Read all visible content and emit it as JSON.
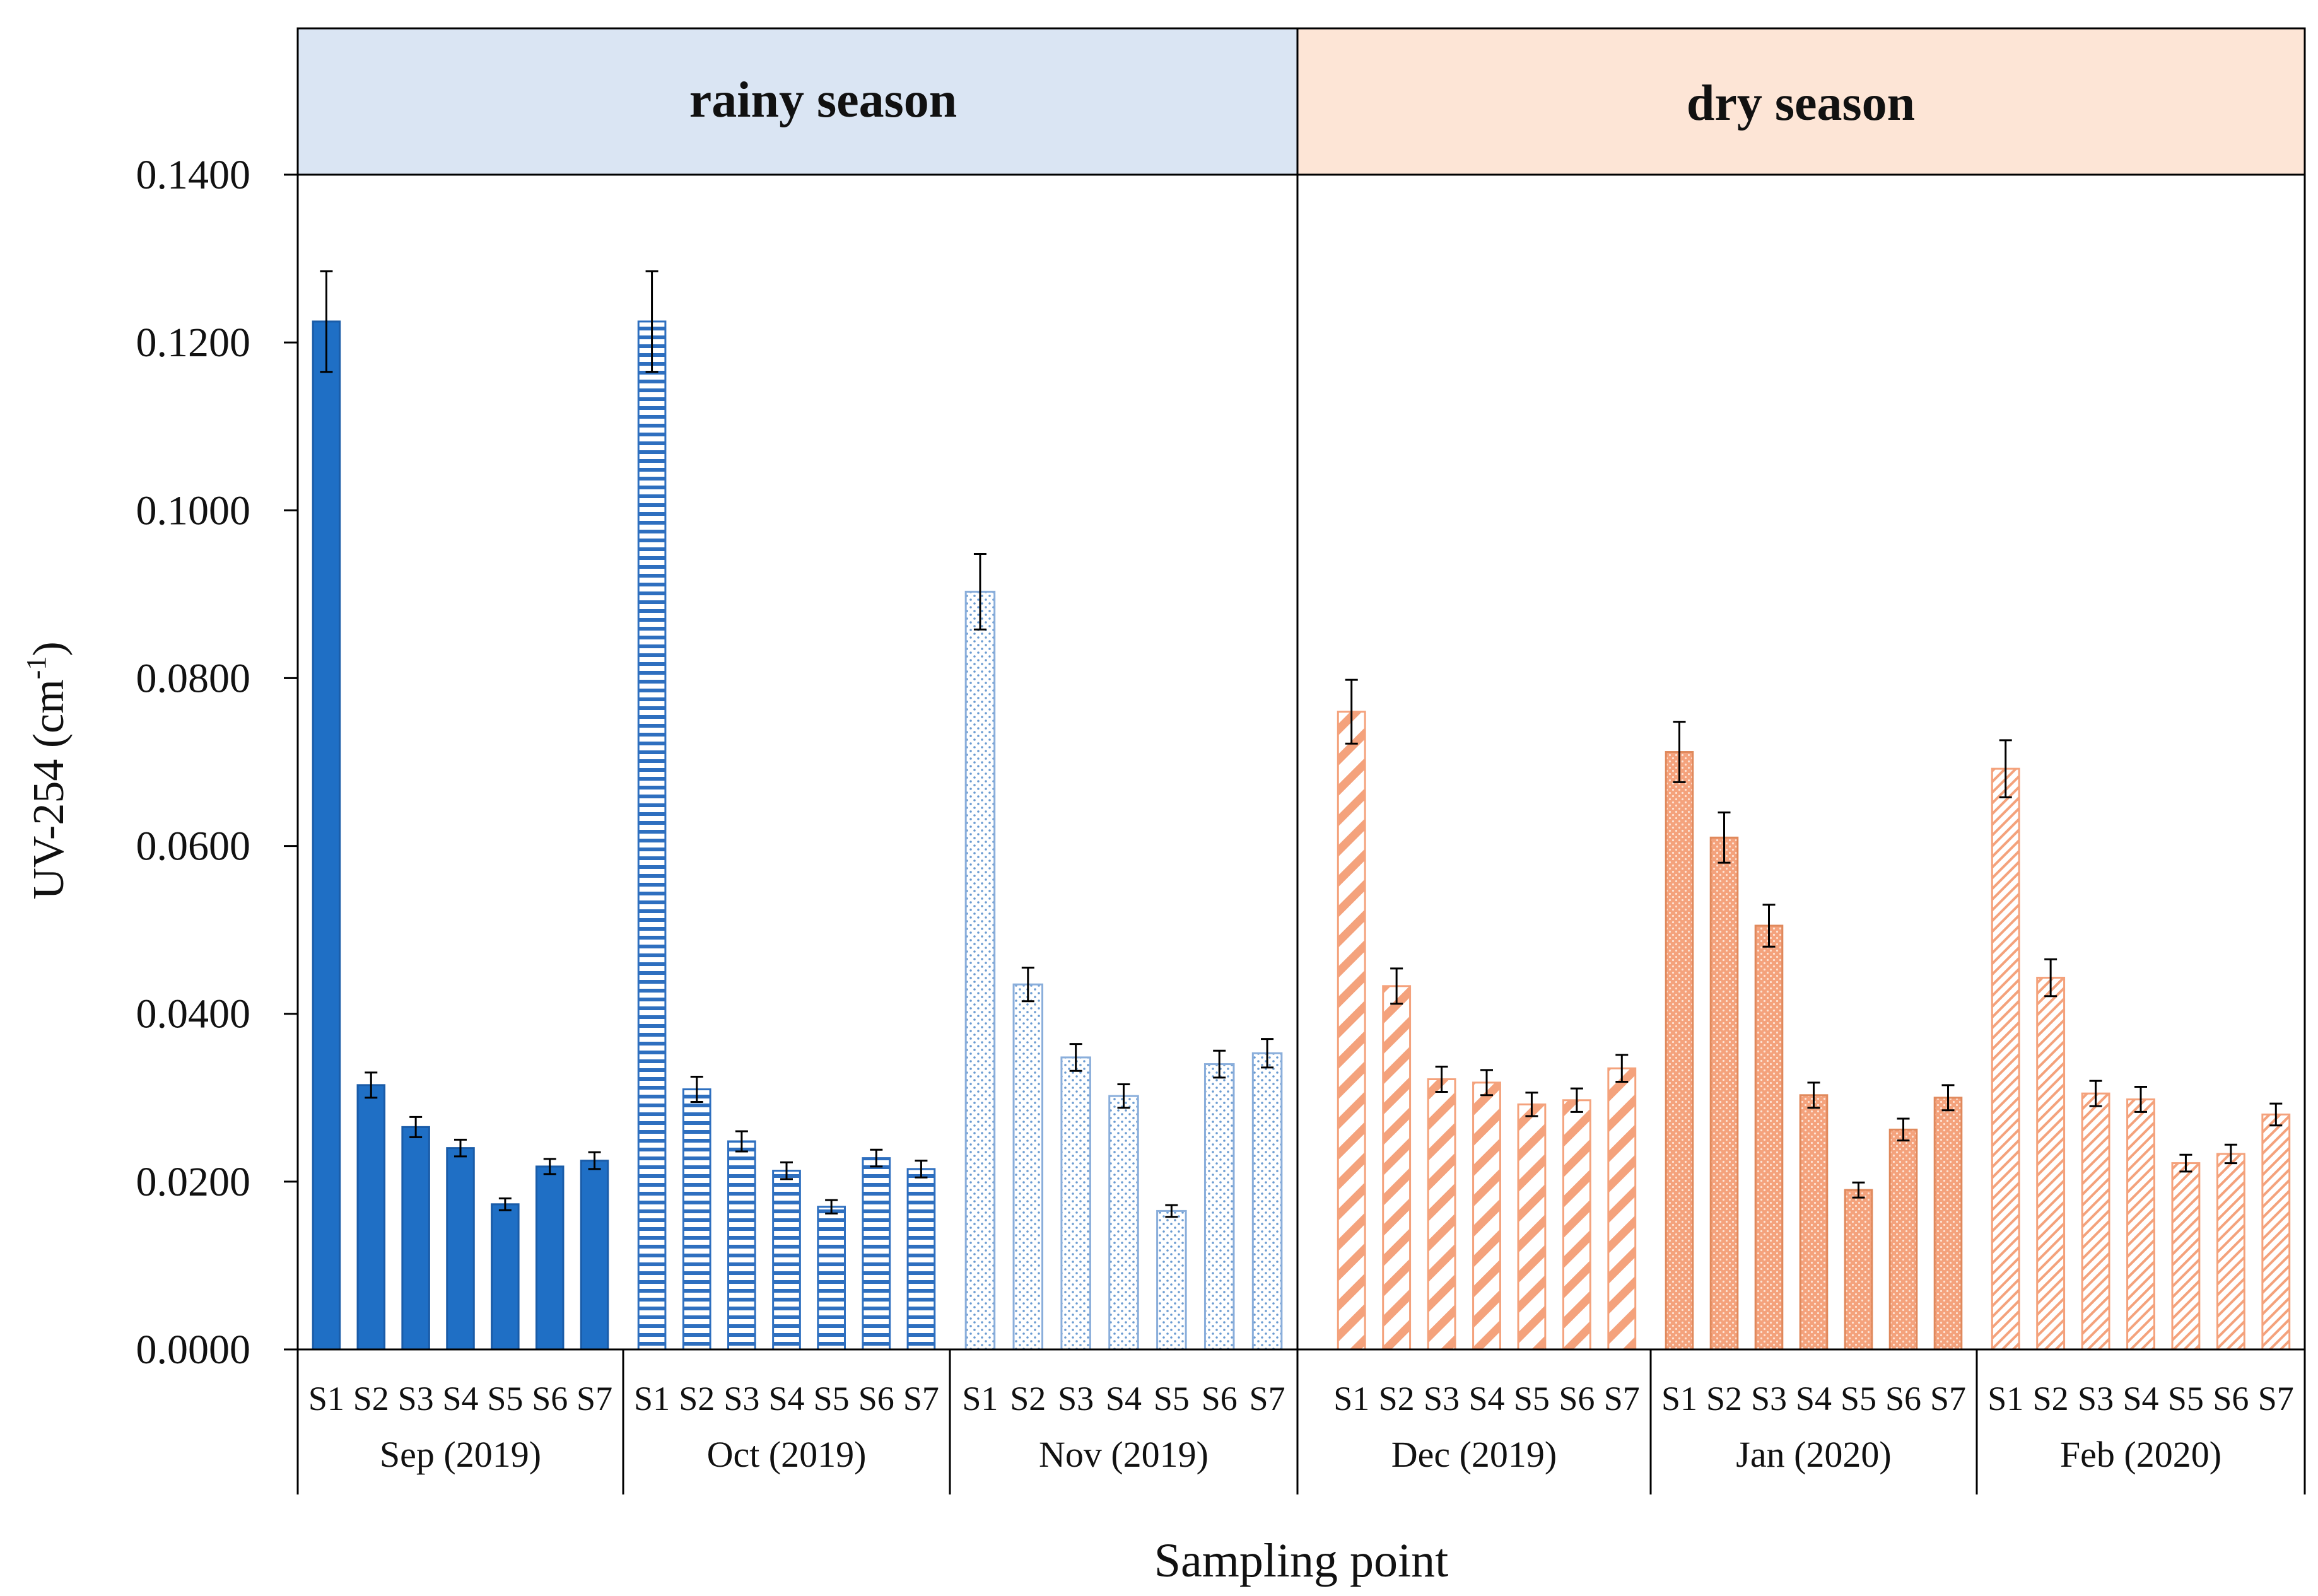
{
  "chart_data": {
    "type": "bar",
    "ylabel": "UV-254 (cm",
    "ylabel_sup": "-1",
    "ylabel_close": ")",
    "xlabel": "Sampling point",
    "ylim": [
      0,
      0.14
    ],
    "yticks": [
      "0.0000",
      "0.0200",
      "0.0400",
      "0.0600",
      "0.0800",
      "0.1000",
      "0.1200",
      "0.1400"
    ],
    "seasons": [
      {
        "label": "rainy season",
        "color": "#dae5f3"
      },
      {
        "label": "dry season",
        "color": "#fde5d6"
      }
    ],
    "categories": [
      "S1",
      "S2",
      "S3",
      "S4",
      "S5",
      "S6",
      "S7"
    ],
    "series": [
      {
        "name": "Sep (2019)",
        "season": 0,
        "pattern": "solid",
        "color": "#1f6fc5",
        "values": [
          0.1225,
          0.0315,
          0.0265,
          0.024,
          0.0173,
          0.0218,
          0.0225
        ],
        "errors": [
          0.006,
          0.0015,
          0.0012,
          0.001,
          0.0007,
          0.0009,
          0.001
        ]
      },
      {
        "name": "Oct (2019)",
        "season": 0,
        "pattern": "hlines",
        "color": "#2e6fbf",
        "values": [
          0.1225,
          0.031,
          0.0248,
          0.0213,
          0.017,
          0.0228,
          0.0215
        ],
        "errors": [
          0.006,
          0.0015,
          0.0012,
          0.001,
          0.0008,
          0.001,
          0.001
        ]
      },
      {
        "name": "Nov (2019)",
        "season": 0,
        "pattern": "dots",
        "color": "#6a9bd1",
        "values": [
          0.0903,
          0.0435,
          0.0348,
          0.0302,
          0.0165,
          0.034,
          0.0353
        ],
        "errors": [
          0.0045,
          0.002,
          0.0016,
          0.0014,
          0.0007,
          0.0016,
          0.0017
        ]
      },
      {
        "name": "Dec (2019)",
        "season": 1,
        "pattern": "wdiag",
        "color": "#f4a27c",
        "values": [
          0.076,
          0.0433,
          0.0322,
          0.0318,
          0.0292,
          0.0297,
          0.0335
        ],
        "errors": [
          0.0038,
          0.0021,
          0.0015,
          0.0015,
          0.0014,
          0.0014,
          0.0016
        ]
      },
      {
        "name": "Jan (2020)",
        "season": 1,
        "pattern": "dense",
        "color": "#f4a27c",
        "values": [
          0.0712,
          0.061,
          0.0505,
          0.0303,
          0.019,
          0.0262,
          0.03
        ],
        "errors": [
          0.0036,
          0.003,
          0.0025,
          0.0015,
          0.0009,
          0.0013,
          0.0015
        ]
      },
      {
        "name": "Feb (2020)",
        "season": 1,
        "pattern": "ndiag",
        "color": "#f4a27c",
        "values": [
          0.0692,
          0.0443,
          0.0305,
          0.0298,
          0.0222,
          0.0233,
          0.028
        ],
        "errors": [
          0.0034,
          0.0022,
          0.0015,
          0.0015,
          0.001,
          0.0011,
          0.0013
        ]
      }
    ]
  }
}
